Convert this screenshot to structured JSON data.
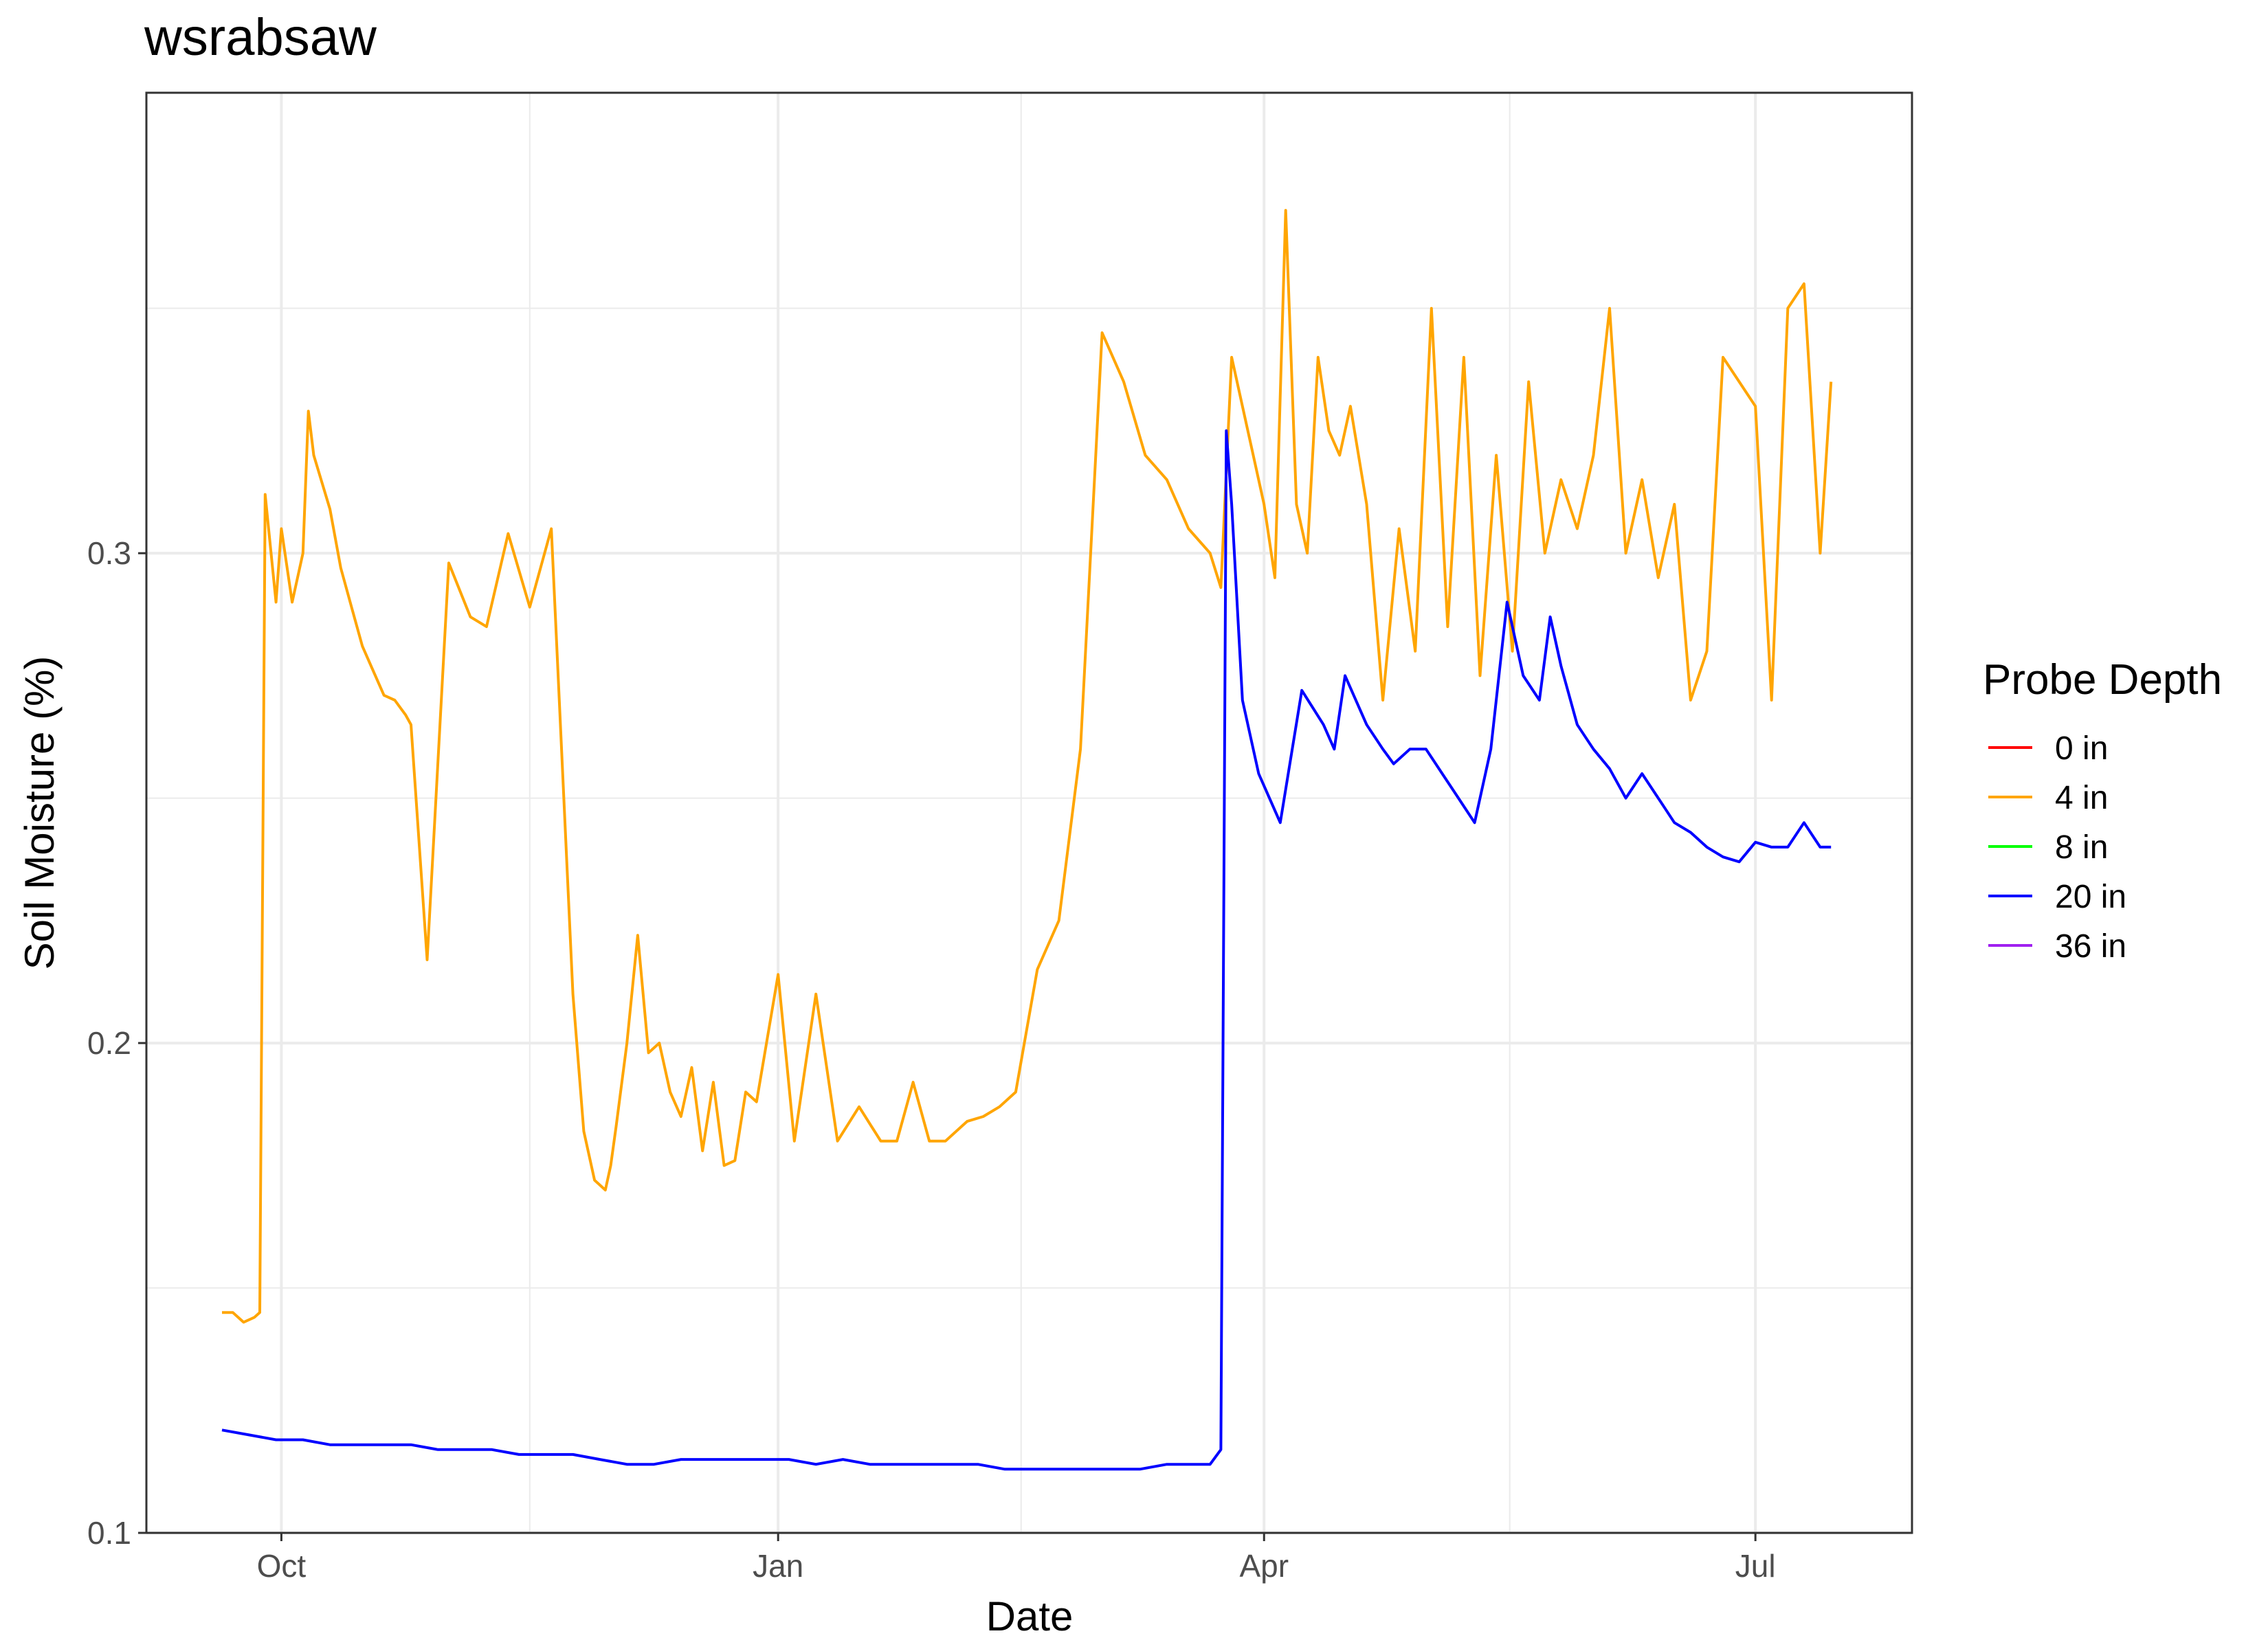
{
  "chart_data": {
    "type": "line",
    "title": "wsrabsaw",
    "xlabel": "Date",
    "ylabel": "Soil Moisture (%)",
    "x_ticks": [
      "Oct",
      "Jan",
      "Apr",
      "Jul"
    ],
    "x_tick_dates": [
      "2020-10-01",
      "2021-01-01",
      "2021-04-01",
      "2021-07-01"
    ],
    "y_ticks": [
      0.1,
      0.2,
      0.3
    ],
    "ylim": [
      0.1,
      0.394
    ],
    "xlim": [
      "2020-09-06",
      "2021-07-30"
    ],
    "grid": true,
    "legend": {
      "title": "Probe Depth",
      "position": "right"
    },
    "series": [
      {
        "name": "0 in",
        "color": "#ff0000",
        "x": [],
        "y": []
      },
      {
        "name": "4 in",
        "color": "#ffa500",
        "x": [
          "2020-09-20",
          "2020-09-22",
          "2020-09-24",
          "2020-09-26",
          "2020-09-27",
          "2020-09-28",
          "2020-09-30",
          "2020-10-01",
          "2020-10-03",
          "2020-10-05",
          "2020-10-06",
          "2020-10-07",
          "2020-10-10",
          "2020-10-12",
          "2020-10-14",
          "2020-10-16",
          "2020-10-18",
          "2020-10-20",
          "2020-10-22",
          "2020-10-24",
          "2020-10-25",
          "2020-10-28",
          "2020-11-01",
          "2020-11-05",
          "2020-11-08",
          "2020-11-12",
          "2020-11-16",
          "2020-11-20",
          "2020-11-24",
          "2020-11-26",
          "2020-11-28",
          "2020-11-30",
          "2020-12-01",
          "2020-12-02",
          "2020-12-04",
          "2020-12-06",
          "2020-12-08",
          "2020-12-10",
          "2020-12-12",
          "2020-12-14",
          "2020-12-16",
          "2020-12-18",
          "2020-12-20",
          "2020-12-22",
          "2020-12-24",
          "2020-12-26",
          "2020-12-28",
          "2021-01-01",
          "2021-01-04",
          "2021-01-08",
          "2021-01-12",
          "2021-01-16",
          "2021-01-20",
          "2021-01-23",
          "2021-01-26",
          "2021-01-29",
          "2021-02-01",
          "2021-02-05",
          "2021-02-08",
          "2021-02-11",
          "2021-02-14",
          "2021-02-18",
          "2021-02-22",
          "2021-02-26",
          "2021-03-02",
          "2021-03-06",
          "2021-03-10",
          "2021-03-14",
          "2021-03-18",
          "2021-03-22",
          "2021-03-24",
          "2021-03-26",
          "2021-03-28",
          "2021-03-30",
          "2021-04-01",
          "2021-04-03",
          "2021-04-05",
          "2021-04-07",
          "2021-04-09",
          "2021-04-11",
          "2021-04-13",
          "2021-04-15",
          "2021-04-17",
          "2021-04-20",
          "2021-04-23",
          "2021-04-26",
          "2021-04-29",
          "2021-05-02",
          "2021-05-05",
          "2021-05-08",
          "2021-05-11",
          "2021-05-14",
          "2021-05-17",
          "2021-05-20",
          "2021-05-23",
          "2021-05-26",
          "2021-05-29",
          "2021-06-01",
          "2021-06-04",
          "2021-06-07",
          "2021-06-10",
          "2021-06-13",
          "2021-06-16",
          "2021-06-19",
          "2021-06-22",
          "2021-06-25",
          "2021-06-28",
          "2021-07-01",
          "2021-07-04",
          "2021-07-07",
          "2021-07-10",
          "2021-07-13",
          "2021-07-15"
        ],
        "y": [
          0.145,
          0.145,
          0.143,
          0.144,
          0.145,
          0.312,
          0.29,
          0.305,
          0.29,
          0.3,
          0.329,
          0.32,
          0.309,
          0.297,
          0.289,
          0.281,
          0.276,
          0.271,
          0.27,
          0.267,
          0.265,
          0.217,
          0.298,
          0.287,
          0.285,
          0.304,
          0.289,
          0.305,
          0.21,
          0.182,
          0.172,
          0.17,
          0.175,
          0.183,
          0.2,
          0.222,
          0.198,
          0.2,
          0.19,
          0.185,
          0.195,
          0.178,
          0.192,
          0.175,
          0.176,
          0.19,
          0.188,
          0.214,
          0.18,
          0.21,
          0.18,
          0.187,
          0.18,
          0.18,
          0.192,
          0.18,
          0.18,
          0.184,
          0.185,
          0.187,
          0.19,
          0.215,
          0.225,
          0.26,
          0.345,
          0.335,
          0.32,
          0.315,
          0.305,
          0.3,
          0.293,
          0.34,
          0.33,
          0.32,
          0.31,
          0.295,
          0.37,
          0.31,
          0.3,
          0.34,
          0.325,
          0.32,
          0.33,
          0.31,
          0.27,
          0.305,
          0.28,
          0.35,
          0.285,
          0.34,
          0.275,
          0.32,
          0.28,
          0.335,
          0.3,
          0.315,
          0.305,
          0.32,
          0.35,
          0.3,
          0.315,
          0.295,
          0.31,
          0.27,
          0.28,
          0.34,
          0.335,
          0.33,
          0.27,
          0.35,
          0.355,
          0.3,
          0.335
        ],
        "y_note": ""
      },
      {
        "name": "8 in",
        "color": "#00ff00",
        "x": [],
        "y": []
      },
      {
        "name": "20 in",
        "color": "#0000ff",
        "x": [
          "2020-09-20",
          "2020-09-25",
          "2020-09-30",
          "2020-10-05",
          "2020-10-10",
          "2020-10-15",
          "2020-10-20",
          "2020-10-25",
          "2020-10-30",
          "2020-11-04",
          "2020-11-09",
          "2020-11-14",
          "2020-11-19",
          "2020-11-24",
          "2020-11-29",
          "2020-12-04",
          "2020-12-09",
          "2020-12-14",
          "2020-12-19",
          "2020-12-24",
          "2020-12-29",
          "2021-01-03",
          "2021-01-08",
          "2021-01-13",
          "2021-01-18",
          "2021-01-23",
          "2021-01-28",
          "2021-02-02",
          "2021-02-07",
          "2021-02-12",
          "2021-02-17",
          "2021-02-22",
          "2021-02-27",
          "2021-03-04",
          "2021-03-09",
          "2021-03-14",
          "2021-03-19",
          "2021-03-22",
          "2021-03-24",
          "2021-03-25",
          "2021-03-26",
          "2021-03-28",
          "2021-03-31",
          "2021-04-04",
          "2021-04-08",
          "2021-04-12",
          "2021-04-14",
          "2021-04-16",
          "2021-04-20",
          "2021-04-23",
          "2021-04-25",
          "2021-04-28",
          "2021-05-01",
          "2021-05-04",
          "2021-05-07",
          "2021-05-10",
          "2021-05-13",
          "2021-05-16",
          "2021-05-19",
          "2021-05-22",
          "2021-05-24",
          "2021-05-26",
          "2021-05-29",
          "2021-06-01",
          "2021-06-04",
          "2021-06-07",
          "2021-06-10",
          "2021-06-13",
          "2021-06-16",
          "2021-06-19",
          "2021-06-22",
          "2021-06-25",
          "2021-06-28",
          "2021-07-01",
          "2021-07-04",
          "2021-07-07",
          "2021-07-10",
          "2021-07-13",
          "2021-07-15"
        ],
        "y": [
          0.121,
          0.12,
          0.119,
          0.119,
          0.118,
          0.118,
          0.118,
          0.118,
          0.117,
          0.117,
          0.117,
          0.116,
          0.116,
          0.116,
          0.115,
          0.114,
          0.114,
          0.115,
          0.115,
          0.115,
          0.115,
          0.115,
          0.114,
          0.115,
          0.114,
          0.114,
          0.114,
          0.114,
          0.114,
          0.113,
          0.113,
          0.113,
          0.113,
          0.113,
          0.113,
          0.114,
          0.114,
          0.114,
          0.117,
          0.325,
          0.31,
          0.27,
          0.255,
          0.245,
          0.272,
          0.265,
          0.26,
          0.275,
          0.265,
          0.26,
          0.257,
          0.26,
          0.26,
          0.255,
          0.25,
          0.245,
          0.26,
          0.29,
          0.275,
          0.27,
          0.287,
          0.277,
          0.265,
          0.26,
          0.256,
          0.25,
          0.255,
          0.25,
          0.245,
          0.243,
          0.24,
          0.238,
          0.237,
          0.241,
          0.24,
          0.24,
          0.245,
          0.24,
          0.24
        ],
        "y_note": ""
      },
      {
        "name": "36 in",
        "color": "#a020f0",
        "x": [],
        "y": []
      }
    ]
  }
}
